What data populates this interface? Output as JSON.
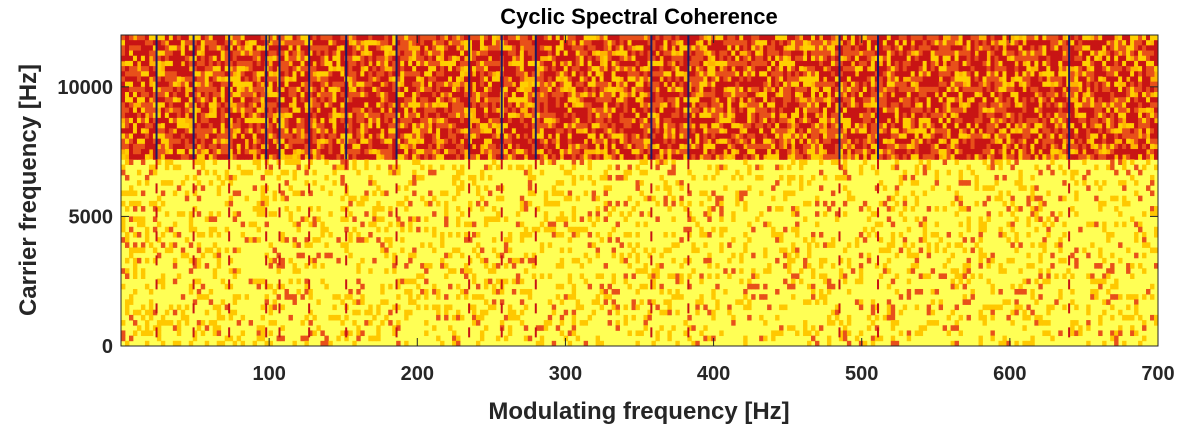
{
  "chart_data": {
    "type": "heatmap",
    "title": "Cyclic Spectral Coherence",
    "xlabel": "Modulating frequency [Hz]",
    "ylabel": "Carrier frequency [Hz]",
    "xlim": [
      0,
      700
    ],
    "ylim": [
      0,
      12000
    ],
    "x_ticks": [
      100,
      200,
      300,
      400,
      500,
      600,
      700
    ],
    "y_ticks": [
      0,
      5000,
      10000
    ],
    "x_tick_labels": [
      "100",
      "200",
      "300",
      "400",
      "500",
      "600",
      "700"
    ],
    "y_tick_labels": [
      "0",
      "5000",
      "10000"
    ],
    "colormap": "hot (dark red = high, yellow = low)",
    "colors": {
      "background_low": "#ffff55",
      "mid": "#ffb400",
      "high": "#c81414",
      "peak": "#1a1a66"
    },
    "band_boundary_hz": 7200,
    "high_band_level": 0.7,
    "low_band_level": 0.25,
    "strong_lines_hz": [
      24,
      49,
      73,
      98,
      107,
      127,
      152,
      186,
      235,
      257,
      280,
      358,
      383,
      485,
      511,
      640
    ]
  }
}
